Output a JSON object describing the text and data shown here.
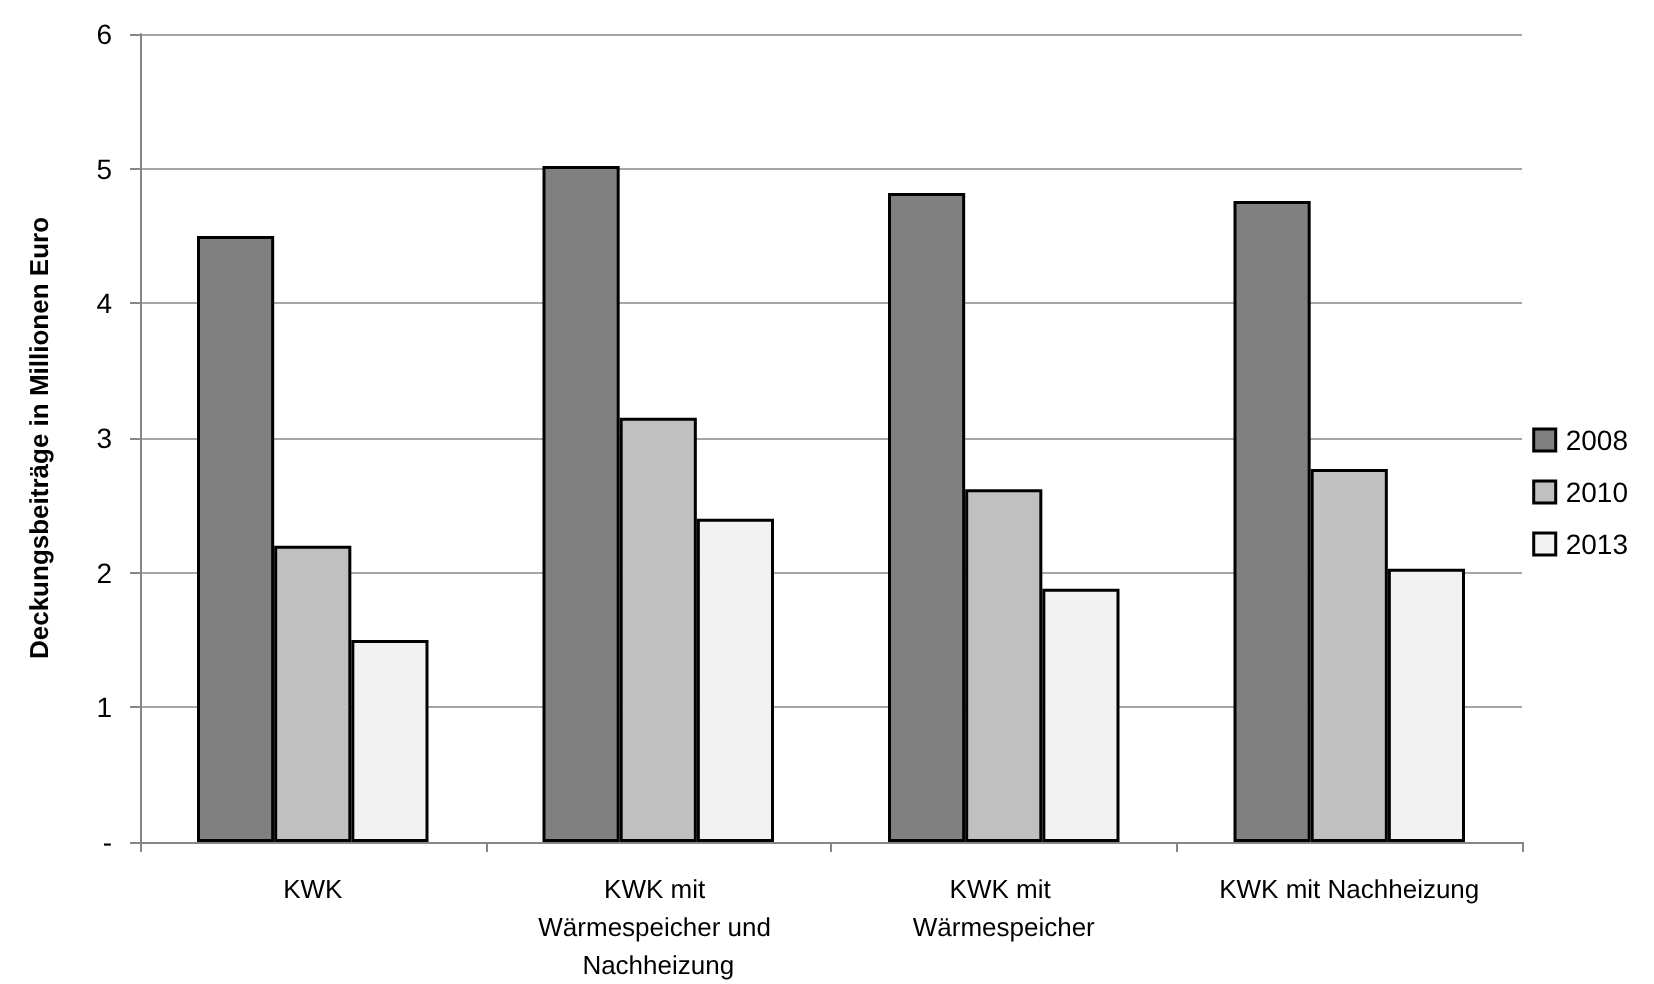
{
  "chart_data": {
    "type": "bar",
    "ylabel": "Deckungsbeiträge in Millionen Euro",
    "categories": [
      "KWK",
      "KWK mit Wärmespeicher und Nachheizung",
      "KWK mit Wärmespeicher",
      "KWK mit Nachheizung"
    ],
    "series": [
      {
        "name": "2008",
        "color": "#808080",
        "values": [
          4.5,
          5.02,
          4.82,
          4.76
        ]
      },
      {
        "name": "2010",
        "color": "#c0c0c0",
        "values": [
          2.2,
          3.15,
          2.62,
          2.77
        ]
      },
      {
        "name": "2013",
        "color": "#f2f2f2",
        "values": [
          1.5,
          2.4,
          1.88,
          2.03
        ]
      }
    ],
    "ylim": [
      0,
      6
    ],
    "yticks": [
      {
        "value": 0,
        "label": "-"
      },
      1,
      2,
      3,
      4,
      5,
      6
    ],
    "grid": "y",
    "legend": "right"
  }
}
